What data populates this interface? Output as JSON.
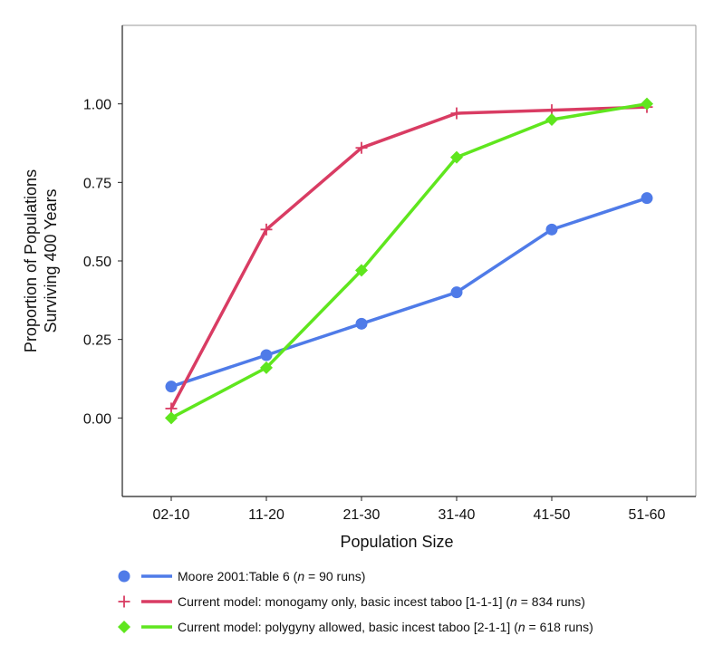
{
  "chart_data": {
    "type": "line",
    "title": "",
    "xlabel": "Population Size",
    "ylabel_lines": [
      "Proportion of Populations",
      "Surviving 400 Years"
    ],
    "categories": [
      "02-10",
      "11-20",
      "21-30",
      "31-40",
      "41-50",
      "51-60"
    ],
    "yticks": [
      "0.00",
      "0.25",
      "0.50",
      "0.75",
      "1.00"
    ],
    "ylim": [
      -0.25,
      1.25
    ],
    "grid": false,
    "legend_position": "bottom",
    "series": [
      {
        "legend_parts": [
          "Moore 2001:Table 6 (",
          "n",
          " = 90 runs)"
        ],
        "marker": "circle",
        "color": "#4f7be8",
        "values": [
          0.1,
          0.2,
          0.3,
          0.4,
          0.6,
          0.7
        ]
      },
      {
        "legend_parts": [
          "Current model: monogamy only, basic incest taboo [1-1-1] (",
          "n",
          " = 834 runs)"
        ],
        "marker": "plus",
        "color": "#d93c63",
        "values": [
          0.03,
          0.6,
          0.86,
          0.97,
          0.98,
          0.99
        ]
      },
      {
        "legend_parts": [
          "Current model: polygyny allowed, basic incest taboo [2-1-1] (",
          "n",
          " = 618 runs)"
        ],
        "marker": "diamond",
        "color": "#5fe61e",
        "values": [
          0.0,
          0.16,
          0.47,
          0.83,
          0.95,
          1.0
        ]
      }
    ]
  }
}
